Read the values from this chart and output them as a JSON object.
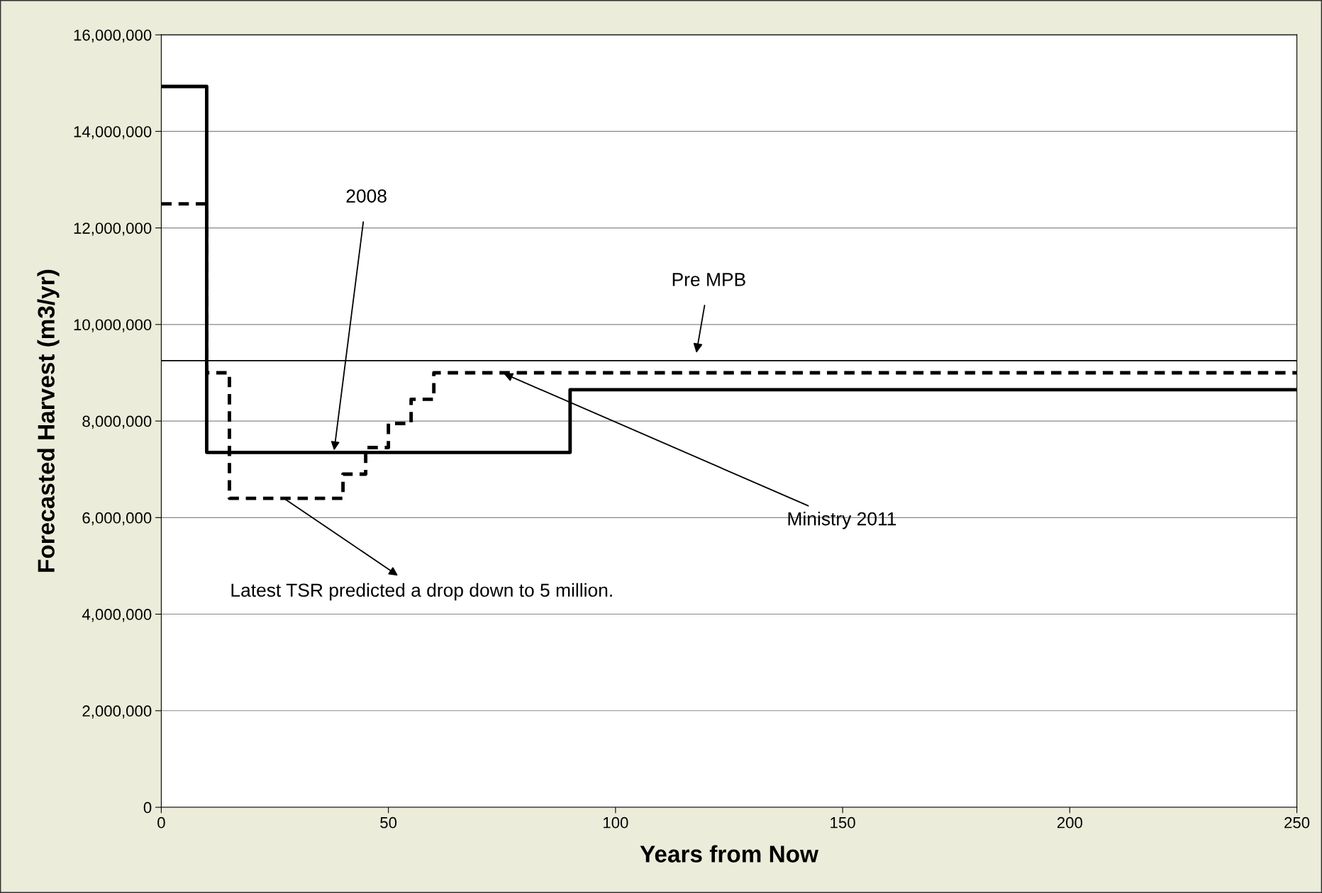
{
  "chart_data": {
    "type": "step",
    "xlabel": "Years from Now",
    "ylabel": "Forecasted Harvest (m3/yr)",
    "series": [
      {
        "color": "#000000",
        "line_style": "solid",
        "x": [
          0,
          10,
          90,
          250
        ],
        "values": [
          14930000,
          7350000,
          8650000,
          8650000
        ]
      },
      {
        "color": "#000000",
        "line_style": "dashed",
        "x": [
          0,
          10,
          15,
          40,
          45,
          50,
          55,
          60,
          250
        ],
        "values": [
          12500000,
          9000000,
          6400000,
          6900000,
          7450000,
          7950000,
          8450000,
          9000000,
          9000000
        ]
      }
    ],
    "ref_lines": [
      {
        "axis": "y",
        "value": 9250000,
        "label": "Pre MPB",
        "color": "#000000"
      }
    ],
    "annotations": [
      {
        "text": "2008",
        "x": 38,
        "y": 7350000
      },
      {
        "text": "Ministry 2011",
        "x": 75,
        "y": 9000000
      },
      {
        "text": "Latest TSR predicted a drop down to 5 million.",
        "x": 27,
        "y": 6400000
      }
    ],
    "xlim": [
      0,
      250
    ],
    "xticks": [
      0,
      50,
      100,
      150,
      200,
      250
    ],
    "ylim": [
      0,
      16000000
    ],
    "yticks": [
      {
        "value": 0,
        "label": "0"
      },
      {
        "value": 2000000,
        "label": "2,000,000"
      },
      {
        "value": 4000000,
        "label": "4,000,000"
      },
      {
        "value": 6000000,
        "label": "6,000,000"
      },
      {
        "value": 8000000,
        "label": "8,000,000"
      },
      {
        "value": 10000000,
        "label": "10,000,000"
      },
      {
        "value": 12000000,
        "label": "12,000,000"
      },
      {
        "value": 14000000,
        "label": "14,000,000"
      },
      {
        "value": 16000000,
        "label": "16,000,000"
      }
    ],
    "grid": "y"
  }
}
